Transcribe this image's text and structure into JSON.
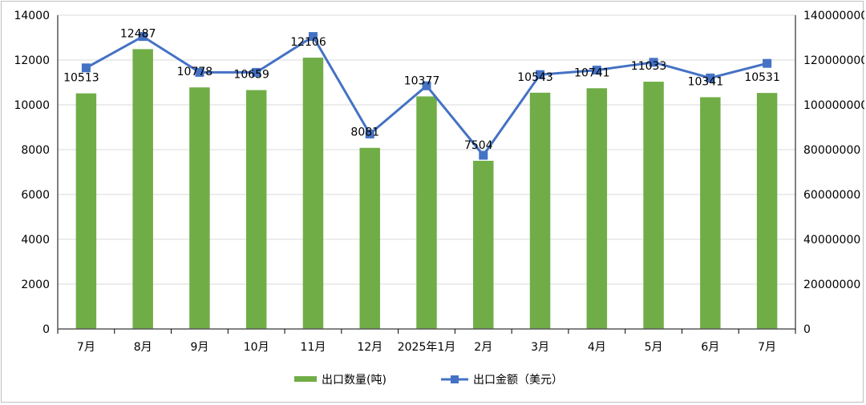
{
  "chart_data": {
    "type": "bar",
    "categories": [
      "7月",
      "8月",
      "9月",
      "10月",
      "11月",
      "12月",
      "2025年1月",
      "2月",
      "3月",
      "4月",
      "5月",
      "6月",
      "7月"
    ],
    "series": [
      {
        "name": "出口数量(吨)",
        "type": "bar",
        "axis": "left",
        "color": "#70ad47",
        "values": [
          10513,
          12487,
          10778,
          10659,
          12106,
          8081,
          10377,
          7504,
          10543,
          10741,
          11033,
          10341,
          10531
        ]
      },
      {
        "name": "出口金额（美元）",
        "type": "line",
        "axis": "right",
        "color": "#4472c4",
        "marker": "square",
        "values": [
          116500000,
          130500000,
          114500000,
          114500000,
          130500000,
          87000000,
          108500000,
          77500000,
          113500000,
          115500000,
          119000000,
          112000000,
          118500000
        ]
      }
    ],
    "y_left": {
      "min": 0,
      "max": 14000,
      "ticks": [
        0,
        2000,
        4000,
        6000,
        8000,
        10000,
        12000,
        14000
      ]
    },
    "y_right": {
      "min": 0,
      "max": 140000000,
      "ticks": [
        0,
        20000000,
        40000000,
        60000000,
        80000000,
        100000000,
        120000000,
        140000000
      ]
    },
    "grid": true,
    "legend_position": "bottom",
    "data_labels": "bar values"
  }
}
